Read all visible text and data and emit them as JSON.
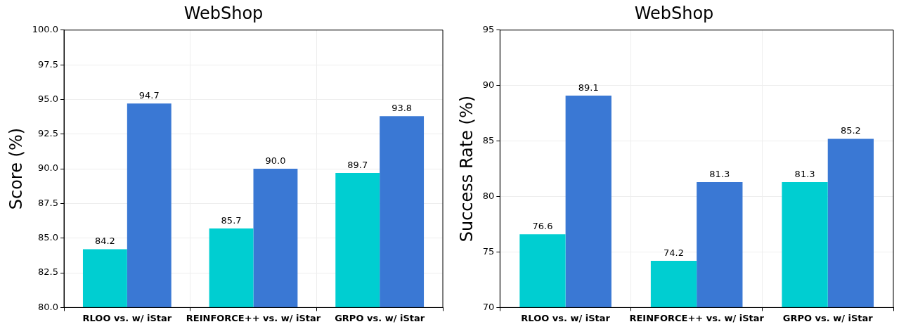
{
  "chart_data": [
    {
      "type": "bar",
      "title": "WebShop",
      "ylabel": "Score (%)",
      "categories": [
        "RLOO vs. w/ iStar",
        "REINFORCE++ vs. w/ iStar",
        "GRPO vs. w/ iStar"
      ],
      "series": [
        {
          "color": "#00ced1",
          "values": [
            84.2,
            85.7,
            89.7
          ]
        },
        {
          "color": "#3a78d4",
          "values": [
            94.7,
            90.0,
            93.8
          ]
        }
      ],
      "ylim": [
        80,
        100
      ],
      "yticks": [
        {
          "value": 80,
          "label": "80.0"
        },
        {
          "value": 82.5,
          "label": "82.5"
        },
        {
          "value": 85,
          "label": "85.0"
        },
        {
          "value": 87.5,
          "label": "87.5"
        },
        {
          "value": 90,
          "label": "90.0"
        },
        {
          "value": 92.5,
          "label": "92.5"
        },
        {
          "value": 95,
          "label": "95.0"
        },
        {
          "value": 97.5,
          "label": "97.5"
        },
        {
          "value": 100,
          "label": "100.0"
        }
      ],
      "value_labels": [
        [
          "84.2",
          "85.7",
          "89.7"
        ],
        [
          "94.7",
          "90.0",
          "93.8"
        ]
      ],
      "grid": true
    },
    {
      "type": "bar",
      "title": "WebShop",
      "ylabel": "Success Rate (%)",
      "categories": [
        "RLOO vs. w/ iStar",
        "REINFORCE++ vs. w/ iStar",
        "GRPO vs. w/ iStar"
      ],
      "series": [
        {
          "color": "#00ced1",
          "values": [
            76.6,
            74.2,
            81.3
          ]
        },
        {
          "color": "#3a78d4",
          "values": [
            89.1,
            81.3,
            85.2
          ]
        }
      ],
      "ylim": [
        70,
        95
      ],
      "yticks": [
        70,
        75,
        80,
        85,
        90,
        95
      ],
      "data_labels": true,
      "grid": true
    }
  ]
}
